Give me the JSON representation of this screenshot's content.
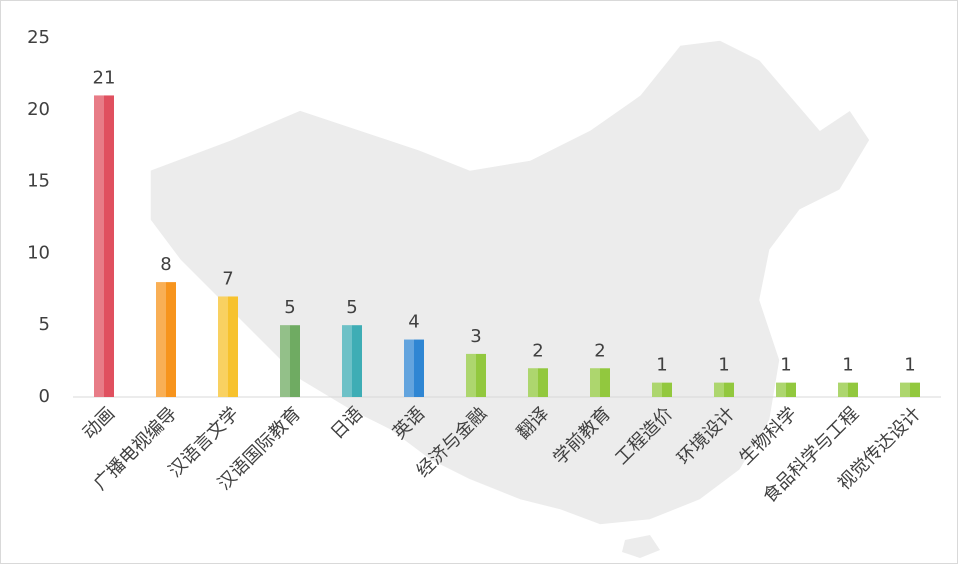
{
  "chart_data": {
    "type": "bar",
    "categories": [
      "动画",
      "广播电视编导",
      "汉语言文学",
      "汉语国际教育",
      "日语",
      "英语",
      "经济与金融",
      "翻译",
      "学前教育",
      "工程造价",
      "环境设计",
      "生物科学",
      "食品科学与工程",
      "视觉传达设计"
    ],
    "values": [
      21,
      8,
      7,
      5,
      5,
      4,
      3,
      2,
      2,
      1,
      1,
      1,
      1,
      1
    ],
    "colors": [
      "#e0505f",
      "#f7941d",
      "#f7c22d",
      "#6fab62",
      "#3eadb5",
      "#2f86d3",
      "#92c83e",
      "#92c83e",
      "#92c83e",
      "#92c83e",
      "#92c83e",
      "#92c83e",
      "#92c83e",
      "#92c83e"
    ],
    "ylim": [
      0,
      25
    ],
    "yticks": [
      0,
      5,
      10,
      15,
      20,
      25
    ],
    "grid": false
  }
}
